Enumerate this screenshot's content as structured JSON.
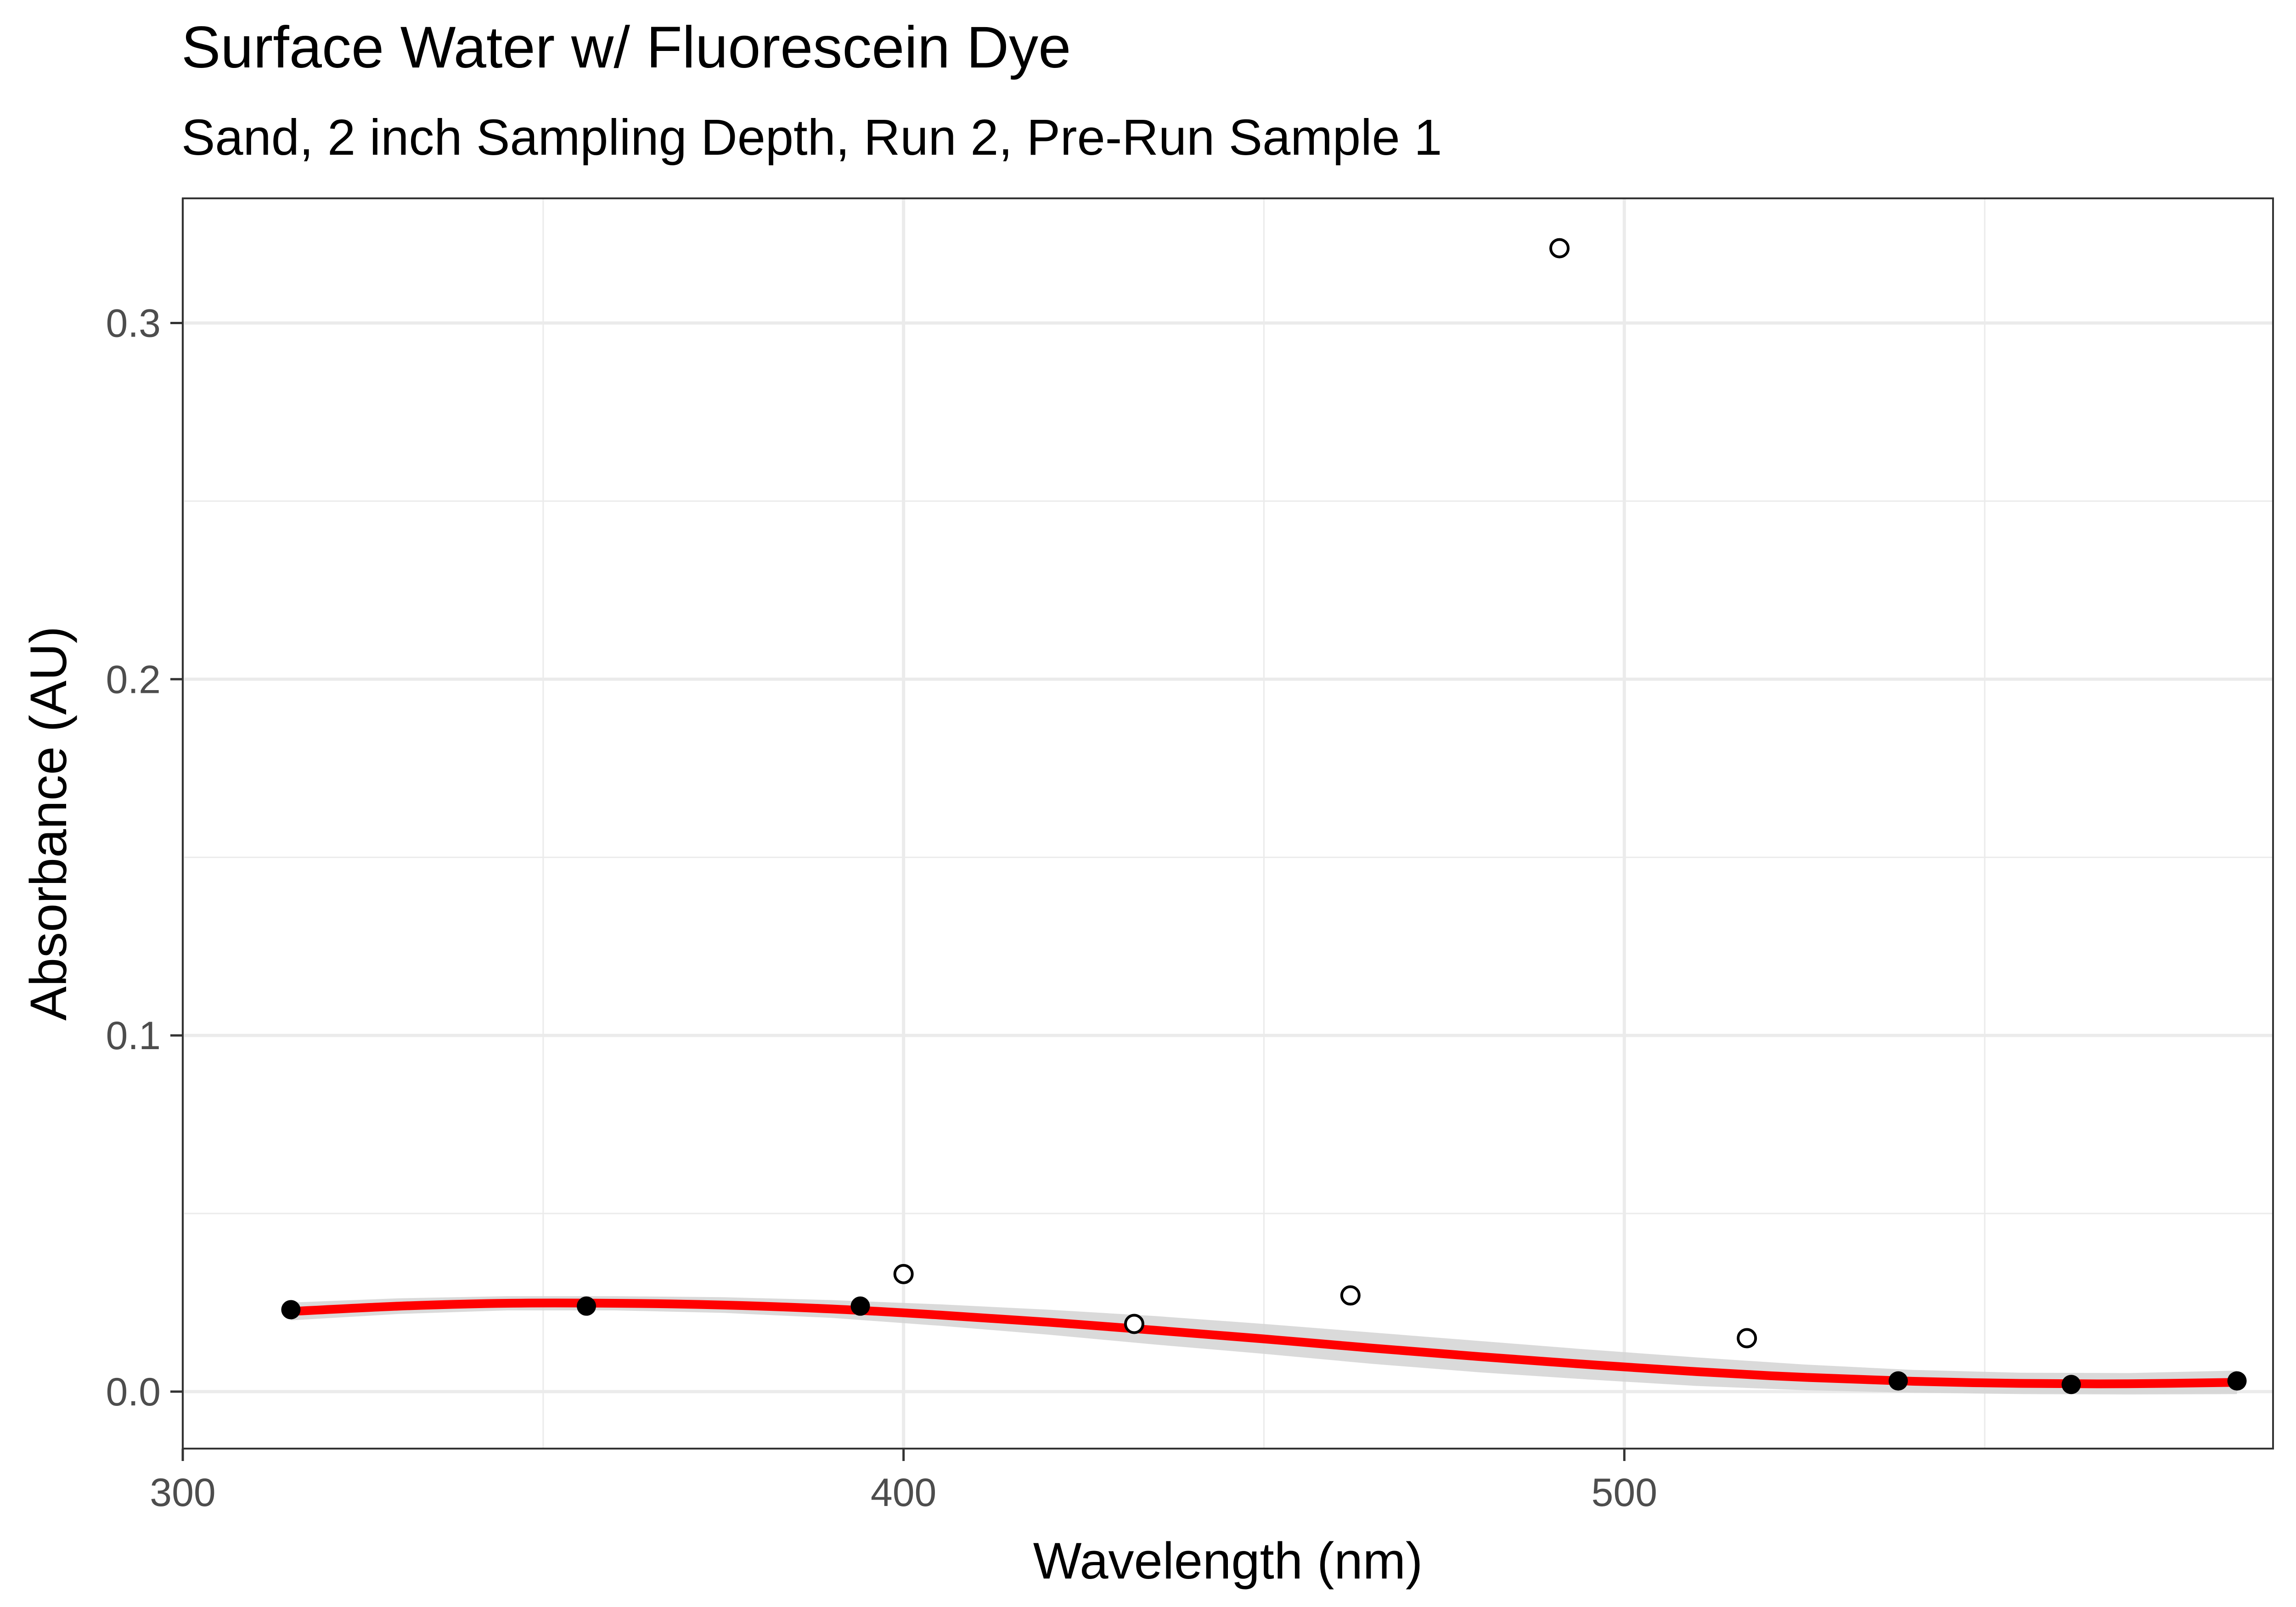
{
  "chart_data": {
    "type": "scatter",
    "title": "Surface Water w/ Fluorescein Dye",
    "subtitle": "Sand, 2 inch Sampling Depth, Run 2, Pre-Run Sample 1",
    "xlabel": "Wavelength (nm)",
    "ylabel": "Absorbance (AU)",
    "xlim": [
      300,
      590
    ],
    "ylim": [
      -0.016,
      0.335
    ],
    "x_ticks": [
      300,
      400,
      500
    ],
    "y_ticks": [
      0.0,
      0.1,
      0.2,
      0.3
    ],
    "x_tick_labels": [
      "300",
      "400",
      "500"
    ],
    "y_tick_labels": [
      "0.0",
      "0.1",
      "0.2",
      "0.3"
    ],
    "grid": true,
    "series": [
      {
        "marker": "filled",
        "points": [
          {
            "x": 315,
            "y": 0.023
          },
          {
            "x": 356,
            "y": 0.024
          },
          {
            "x": 394,
            "y": 0.024
          },
          {
            "x": 538,
            "y": 0.003
          },
          {
            "x": 562,
            "y": 0.002
          },
          {
            "x": 585,
            "y": 0.003
          }
        ]
      },
      {
        "marker": "hollow",
        "points": [
          {
            "x": 400,
            "y": 0.033
          },
          {
            "x": 432,
            "y": 0.019
          },
          {
            "x": 462,
            "y": 0.027
          },
          {
            "x": 491,
            "y": 0.321
          },
          {
            "x": 517,
            "y": 0.015
          }
        ]
      }
    ],
    "fit": {
      "color": "#ff0000",
      "band_color": "#d3d3d3",
      "points": [
        {
          "x": 315,
          "y": 0.0225
        },
        {
          "x": 330,
          "y": 0.024
        },
        {
          "x": 345,
          "y": 0.0248
        },
        {
          "x": 360,
          "y": 0.0248
        },
        {
          "x": 375,
          "y": 0.0243
        },
        {
          "x": 390,
          "y": 0.0232
        },
        {
          "x": 405,
          "y": 0.0215
        },
        {
          "x": 420,
          "y": 0.0195
        },
        {
          "x": 435,
          "y": 0.0172
        },
        {
          "x": 450,
          "y": 0.0148
        },
        {
          "x": 465,
          "y": 0.0122
        },
        {
          "x": 480,
          "y": 0.0098
        },
        {
          "x": 495,
          "y": 0.0076
        },
        {
          "x": 510,
          "y": 0.0056
        },
        {
          "x": 525,
          "y": 0.004
        },
        {
          "x": 540,
          "y": 0.0029
        },
        {
          "x": 555,
          "y": 0.0023
        },
        {
          "x": 570,
          "y": 0.0022
        },
        {
          "x": 585,
          "y": 0.0026
        }
      ],
      "band_halfwidth": [
        0.0025,
        0.0022,
        0.002,
        0.002,
        0.0022,
        0.0025,
        0.003,
        0.0035,
        0.004,
        0.0042,
        0.0044,
        0.0044,
        0.0042,
        0.004,
        0.0036,
        0.0032,
        0.003,
        0.003,
        0.0033
      ]
    }
  }
}
